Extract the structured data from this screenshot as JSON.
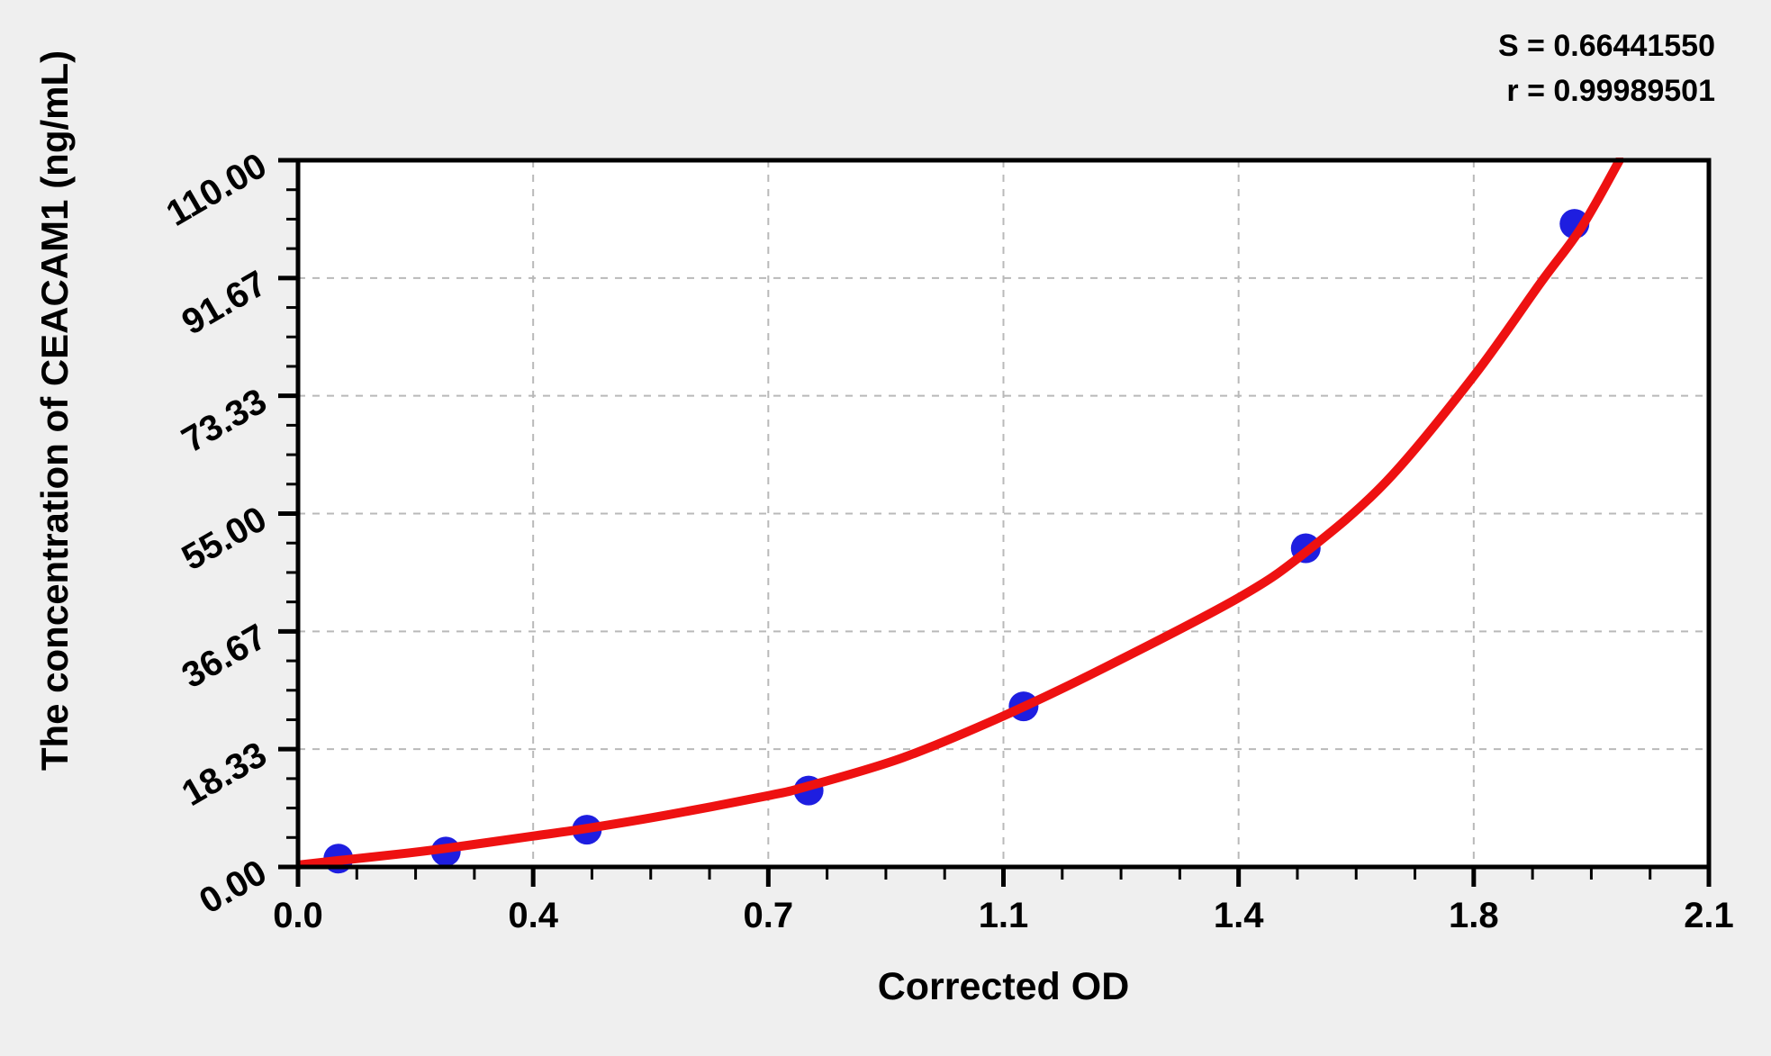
{
  "page": {
    "background": "#efefef"
  },
  "annotations": {
    "s_line": "S = 0.66441550",
    "r_line": "r = 0.99989501"
  },
  "chart_data": {
    "type": "scatter",
    "title": "",
    "xlabel": "Corrected OD",
    "ylabel": "The concentration of CEACAM1 (ng/mL)",
    "xlim": [
      0,
      2.1
    ],
    "ylim": [
      0,
      110
    ],
    "grid": true,
    "legend": "none",
    "x_ticks": {
      "values": [
        0,
        0.35,
        0.7,
        1.05,
        1.4,
        1.75,
        2.1
      ],
      "labels": [
        "0.0",
        "0.4",
        "0.7",
        "1.1",
        "1.4",
        "1.8",
        "2.1"
      ]
    },
    "y_ticks": {
      "values": [
        0,
        18.333,
        36.667,
        55,
        73.333,
        91.667,
        110
      ],
      "labels": [
        "0.00",
        "18.33",
        "36.67",
        "55.00",
        "73.33",
        "91.67",
        "110.00"
      ]
    },
    "minor_divisions": 4,
    "fit_stats": {
      "S": "0.66441550",
      "r": "0.99989501"
    },
    "series": [
      {
        "name": "standards",
        "points": [
          {
            "x": 0.06,
            "y": 1.3
          },
          {
            "x": 0.22,
            "y": 2.4
          },
          {
            "x": 0.43,
            "y": 5.8
          },
          {
            "x": 0.76,
            "y": 11.9
          },
          {
            "x": 1.08,
            "y": 25.0
          },
          {
            "x": 1.5,
            "y": 49.6
          },
          {
            "x": 1.9,
            "y": 100.1
          }
        ]
      }
    ],
    "curve": [
      [
        0.0,
        0.3
      ],
      [
        0.06,
        1.0
      ],
      [
        0.15,
        2.0
      ],
      [
        0.22,
        2.9
      ],
      [
        0.35,
        4.8
      ],
      [
        0.43,
        6.0
      ],
      [
        0.55,
        8.1
      ],
      [
        0.7,
        11.1
      ],
      [
        0.76,
        12.6
      ],
      [
        0.9,
        17.0
      ],
      [
        1.05,
        23.5
      ],
      [
        1.2,
        31.0
      ],
      [
        1.4,
        41.9
      ],
      [
        1.5,
        49.0
      ],
      [
        1.62,
        60.0
      ],
      [
        1.75,
        76.4
      ],
      [
        1.85,
        91.0
      ],
      [
        1.91,
        99.5
      ],
      [
        1.967,
        110.0
      ]
    ],
    "colors": {
      "point": "#1e1ee0",
      "curve": "#ee1111",
      "grid": "#b9b9b9",
      "axis": "#000000",
      "plot_background": "#ffffff",
      "page_background": "#efefef",
      "text": "#000000"
    }
  }
}
